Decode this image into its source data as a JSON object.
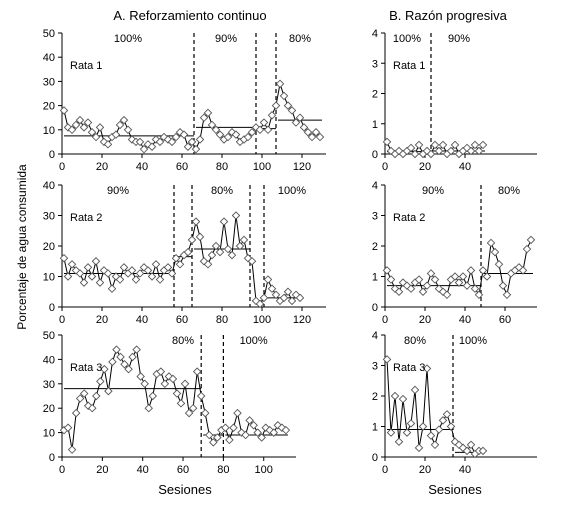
{
  "figure": {
    "column_titles": [
      "A. Reforzamiento continuo",
      "B. Razón progresiva"
    ],
    "ylabel": "Porcentaje de agua consumida",
    "xlabel": "Sesiones"
  },
  "chart_data": [
    {
      "id": "A1",
      "type": "line",
      "rat_label": "Rata 1",
      "xlim": [
        0,
        132
      ],
      "ylim": [
        0,
        50
      ],
      "xticks": [
        0,
        20,
        40,
        60,
        80,
        100,
        120
      ],
      "yticks": [
        0,
        10,
        20,
        30,
        40,
        50
      ],
      "phase_lines": [
        66,
        97,
        107
      ],
      "phase_labels": [
        {
          "x": 33,
          "text": "100%"
        },
        {
          "x": 82,
          "text": "90%"
        },
        {
          "x": 119,
          "text": "80%"
        }
      ],
      "phase_means": [
        {
          "x0": 1,
          "x1": 66,
          "y": 7.5
        },
        {
          "x0": 67,
          "x1": 97,
          "y": 11
        },
        {
          "x0": 98,
          "x1": 107,
          "y": 10.5
        },
        {
          "x0": 108,
          "x1": 130,
          "y": 14
        }
      ],
      "series": [
        {
          "x": [
            1,
            3,
            5,
            7,
            9,
            11,
            13,
            15,
            17,
            19,
            21,
            23,
            25,
            27,
            29,
            31,
            33,
            35,
            37,
            39,
            41,
            43,
            45,
            47,
            49,
            51,
            53,
            55,
            57,
            59,
            61,
            63,
            65,
            67,
            69,
            71,
            73,
            75,
            77,
            79,
            81,
            83,
            85,
            87,
            89,
            91,
            93,
            95,
            97,
            99,
            101,
            103,
            105,
            107,
            109,
            111,
            113,
            115,
            117,
            119,
            121,
            123,
            125,
            127,
            129
          ],
          "y": [
            18,
            11,
            10,
            12,
            14,
            11,
            13,
            9,
            7,
            11,
            5,
            4,
            7,
            8,
            12,
            14,
            10,
            6,
            5,
            5,
            2,
            4,
            3,
            6,
            5,
            7,
            6,
            5,
            7,
            9,
            8,
            3,
            5,
            2,
            6,
            15,
            17,
            12,
            10,
            8,
            6,
            7,
            9,
            8,
            5,
            6,
            7,
            9,
            11,
            10,
            13,
            10,
            16,
            20,
            29,
            24,
            20,
            18,
            13,
            15,
            11,
            9,
            7,
            9,
            7
          ]
        }
      ]
    },
    {
      "id": "B1",
      "type": "line",
      "rat_label": "Rata 1",
      "xlim": [
        0,
        76
      ],
      "ylim": [
        0,
        4
      ],
      "xticks": [
        0,
        20,
        40
      ],
      "yticks": [
        0,
        1,
        2,
        3,
        4
      ],
      "phase_lines": [
        23
      ],
      "phase_labels": [
        {
          "x": 11,
          "text": "100%"
        },
        {
          "x": 37,
          "text": "90%"
        }
      ],
      "phase_means": [
        {
          "x0": 1,
          "x1": 23,
          "y": 0.08
        },
        {
          "x0": 24,
          "x1": 50,
          "y": 0.1
        }
      ],
      "series": [
        {
          "x": [
            1,
            3,
            5,
            7,
            9,
            11,
            13,
            15,
            17,
            19,
            21,
            23,
            25,
            27,
            29,
            31,
            33,
            35,
            37,
            39,
            41,
            43,
            45,
            47,
            49
          ],
          "y": [
            0.4,
            0.1,
            0,
            0.1,
            0,
            0.1,
            0.2,
            0,
            0.3,
            0,
            0.1,
            0,
            0.3,
            0.1,
            0.3,
            0,
            0.1,
            0.3,
            0,
            0.1,
            0.2,
            0.1,
            0.3,
            0.1,
            0.3
          ]
        }
      ]
    },
    {
      "id": "A2",
      "type": "line",
      "rat_label": "Rata 2",
      "xlim": [
        0,
        132
      ],
      "ylim": [
        0,
        40
      ],
      "xticks": [
        0,
        20,
        40,
        60,
        80,
        100,
        120
      ],
      "yticks": [
        0,
        10,
        20,
        30,
        40
      ],
      "phase_lines": [
        56,
        65,
        94,
        101
      ],
      "phase_labels": [
        {
          "x": 28,
          "text": "90%"
        },
        {
          "x": 80,
          "text": "80%"
        },
        {
          "x": 115,
          "text": "100%"
        }
      ],
      "phase_means": [
        {
          "x0": 1,
          "x1": 56,
          "y": 11
        },
        {
          "x0": 57,
          "x1": 65,
          "y": 16.5
        },
        {
          "x0": 66,
          "x1": 94,
          "y": 19
        },
        {
          "x0": 95,
          "x1": 101,
          "y": 2
        },
        {
          "x0": 102,
          "x1": 120,
          "y": 3
        }
      ],
      "series": [
        {
          "x": [
            1,
            3,
            5,
            7,
            9,
            11,
            13,
            15,
            17,
            19,
            21,
            23,
            25,
            27,
            29,
            31,
            33,
            35,
            37,
            39,
            41,
            43,
            45,
            47,
            49,
            51,
            53,
            55,
            57,
            59,
            61,
            63,
            65,
            67,
            69,
            71,
            73,
            75,
            77,
            79,
            81,
            83,
            85,
            87,
            89,
            91,
            93,
            95,
            97,
            99,
            101,
            103,
            105,
            107,
            109,
            111,
            113,
            115,
            117,
            119
          ],
          "y": [
            16,
            10,
            14,
            12,
            11,
            8,
            13,
            10,
            15,
            8,
            12,
            11,
            6,
            10,
            9,
            13,
            11,
            12,
            9,
            11,
            13,
            12,
            10,
            14,
            9,
            12,
            13,
            11,
            16,
            14,
            17,
            18,
            22,
            28,
            23,
            15,
            14,
            17,
            20,
            18,
            28,
            19,
            17,
            30,
            20,
            22,
            16,
            15,
            2,
            1,
            3,
            9,
            6,
            4,
            2,
            3,
            5,
            2,
            4,
            3
          ]
        }
      ]
    },
    {
      "id": "B2",
      "type": "line",
      "rat_label": "Rata 2",
      "xlim": [
        0,
        76
      ],
      "ylim": [
        0,
        4
      ],
      "xticks": [
        0,
        20,
        40,
        60
      ],
      "yticks": [
        0,
        1,
        2,
        3,
        4
      ],
      "phase_lines": [
        48
      ],
      "phase_labels": [
        {
          "x": 24,
          "text": "90%"
        },
        {
          "x": 62,
          "text": "80%"
        }
      ],
      "phase_means": [
        {
          "x0": 1,
          "x1": 48,
          "y": 0.7
        },
        {
          "x0": 49,
          "x1": 74,
          "y": 1.1
        }
      ],
      "series": [
        {
          "x": [
            1,
            3,
            5,
            7,
            9,
            11,
            13,
            15,
            17,
            19,
            21,
            23,
            25,
            27,
            29,
            31,
            33,
            35,
            37,
            39,
            41,
            43,
            45,
            47,
            49,
            51,
            53,
            55,
            57,
            59,
            61,
            63,
            65,
            67,
            69,
            71,
            73
          ],
          "y": [
            1.2,
            0.9,
            0.6,
            0.5,
            0.8,
            0.7,
            0.6,
            0.8,
            0.9,
            0.5,
            0.7,
            1.1,
            0.9,
            0.6,
            0.5,
            0.4,
            0.9,
            1.0,
            0.8,
            1.0,
            0.7,
            1.2,
            0.6,
            0.4,
            1.2,
            1.0,
            2.1,
            1.8,
            1.4,
            0.7,
            0.4,
            1.1,
            1.2,
            1.3,
            1.2,
            1.9,
            2.2
          ]
        }
      ]
    },
    {
      "id": "A3",
      "type": "line",
      "rat_label": "Rata 3",
      "xlim": [
        0,
        116
      ],
      "ylim": [
        0,
        50
      ],
      "xticks": [
        0,
        20,
        40,
        60,
        80,
        100
      ],
      "yticks": [
        0,
        10,
        20,
        30,
        40,
        50
      ],
      "phase_lines": [
        69,
        80
      ],
      "phase_labels": [
        {
          "x": 60,
          "text": "80%"
        },
        {
          "x": 95,
          "text": "100%"
        }
      ],
      "phase_means": [
        {
          "x0": 1,
          "x1": 69,
          "y": 28
        },
        {
          "x0": 70,
          "x1": 80,
          "y": 9
        },
        {
          "x0": 81,
          "x1": 112,
          "y": 9
        }
      ],
      "series": [
        {
          "x": [
            1,
            3,
            5,
            7,
            9,
            11,
            13,
            15,
            17,
            19,
            21,
            23,
            25,
            27,
            29,
            31,
            33,
            35,
            37,
            39,
            41,
            43,
            45,
            47,
            49,
            51,
            53,
            55,
            57,
            59,
            61,
            63,
            65,
            67,
            69,
            71,
            73,
            75,
            77,
            79,
            81,
            83,
            85,
            87,
            89,
            91,
            93,
            95,
            97,
            99,
            101,
            103,
            105,
            107,
            109,
            111
          ],
          "y": [
            11,
            12,
            3,
            18,
            24,
            26,
            21,
            20,
            25,
            31,
            36,
            27,
            39,
            44,
            41,
            38,
            36,
            41,
            44,
            33,
            30,
            20,
            25,
            34,
            35,
            30,
            33,
            32,
            26,
            22,
            30,
            18,
            20,
            35,
            25,
            18,
            9,
            6,
            8,
            11,
            12,
            7,
            12,
            18,
            10,
            9,
            15,
            13,
            10,
            8,
            12,
            11,
            10,
            13,
            12,
            11
          ]
        }
      ]
    },
    {
      "id": "B3",
      "type": "line",
      "rat_label": "Rata 3",
      "xlim": [
        0,
        76
      ],
      "ylim": [
        0,
        4
      ],
      "xticks": [
        0,
        20,
        40
      ],
      "yticks": [
        0,
        1,
        2,
        3,
        4
      ],
      "phase_lines": [
        34
      ],
      "phase_labels": [
        {
          "x": 15,
          "text": "80%"
        },
        {
          "x": 44,
          "text": "100%"
        }
      ],
      "phase_means": [
        {
          "x0": 1,
          "x1": 34,
          "y": 0.9
        },
        {
          "x0": 35,
          "x1": 50,
          "y": 0.15
        }
      ],
      "series": [
        {
          "x": [
            1,
            3,
            5,
            7,
            9,
            11,
            13,
            15,
            17,
            19,
            21,
            23,
            25,
            27,
            29,
            31,
            33,
            35,
            37,
            39,
            41,
            43,
            45,
            47,
            49
          ],
          "y": [
            3.2,
            0.8,
            2.0,
            0.5,
            1.9,
            0.8,
            1.1,
            2.2,
            0.3,
            1.0,
            2.9,
            0.7,
            0.4,
            0.9,
            1.2,
            1.4,
            1.0,
            0.5,
            0.4,
            0.3,
            0.2,
            0.4,
            0.1,
            0.2,
            0.2
          ]
        }
      ]
    }
  ]
}
